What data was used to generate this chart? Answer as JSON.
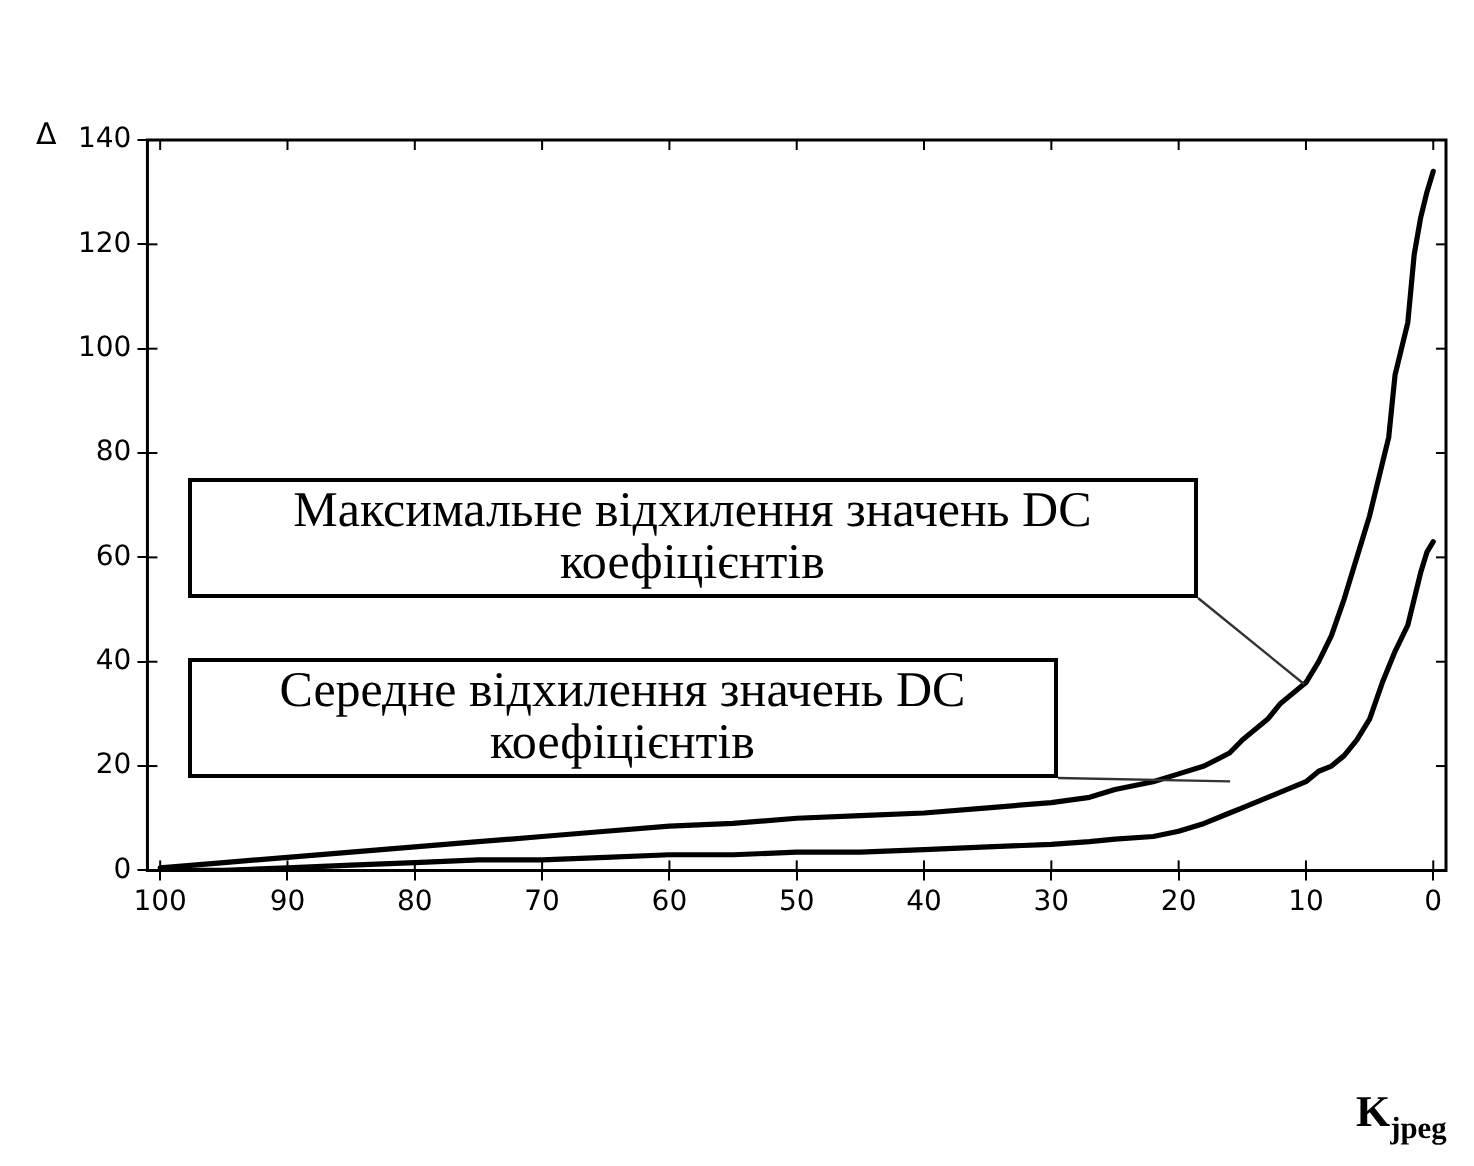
{
  "chart_data": {
    "type": "line",
    "xlabel": "K$_{jpeg}$",
    "ylabel": "Δ",
    "xlim": [
      101,
      -1
    ],
    "xticks": [
      100,
      90,
      80,
      70,
      60,
      50,
      40,
      30,
      20,
      10,
      0
    ],
    "ylim": [
      0,
      140
    ],
    "yticks": [
      0,
      20,
      40,
      60,
      80,
      100,
      120,
      140
    ],
    "grid": false,
    "legend": false,
    "marker": "none",
    "line_style": "solid",
    "series": [
      {
        "color": "#000000",
        "x": [
          100,
          95,
          90,
          85,
          80,
          75,
          70,
          65,
          60,
          55,
          50,
          45,
          40,
          35,
          30,
          27,
          25,
          22,
          20,
          18,
          16,
          15,
          13,
          12,
          10,
          9,
          8,
          7,
          6,
          5,
          4,
          3.5,
          3,
          2,
          1.5,
          1,
          0.5,
          0
        ],
        "values": [
          0.5,
          1.5,
          2.5,
          3.5,
          4.5,
          5.5,
          6.5,
          7.5,
          8.5,
          9,
          10,
          10.5,
          11,
          12,
          13,
          14,
          15.5,
          17,
          18.5,
          20,
          22.5,
          25,
          29,
          32,
          36,
          40,
          45,
          52,
          60,
          68,
          78,
          83,
          95,
          105,
          118,
          125,
          130,
          134
        ]
      },
      {
        "color": "#000000",
        "x": [
          100,
          95,
          90,
          85,
          80,
          75,
          70,
          65,
          60,
          55,
          50,
          45,
          40,
          35,
          30,
          27,
          25,
          22,
          20,
          18,
          16,
          15,
          13,
          12,
          10,
          9,
          8,
          7,
          6,
          5,
          4,
          3,
          2,
          1.5,
          1,
          0.5,
          0
        ],
        "values": [
          0,
          0,
          0.5,
          1,
          1.5,
          2,
          2,
          2.5,
          3,
          3,
          3.5,
          3.5,
          4,
          4.5,
          5,
          5.5,
          6,
          6.5,
          7.5,
          9,
          11,
          12,
          14,
          15,
          17,
          19,
          20,
          22,
          25,
          29,
          36,
          42,
          47,
          52,
          57,
          61,
          63
        ]
      }
    ],
    "annotations": [
      "Максимальне відхилення значень DC коефіцієнтів",
      "Середне відхилення значень DC коефіцієнтів"
    ]
  }
}
